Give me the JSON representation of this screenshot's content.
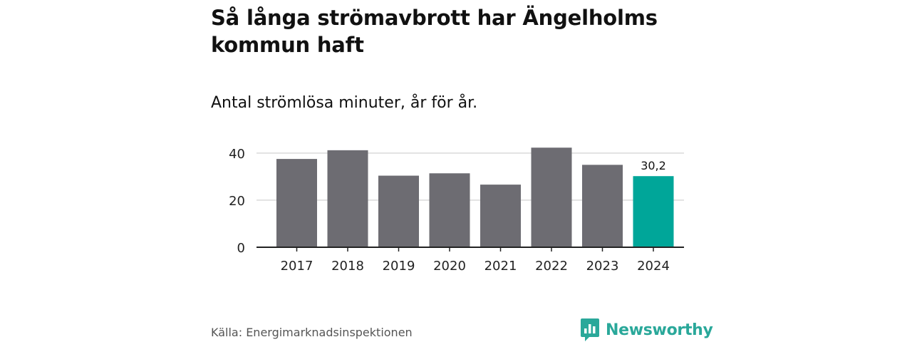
{
  "header": {
    "title": "Så långa strömavbrott har Ängelholms kommun haft",
    "subtitle": "Antal strömlösa minuter, år för år."
  },
  "footer": {
    "source": "Källa: Energimarknadsinspektionen",
    "brand": "Newsworthy"
  },
  "colors": {
    "bar": "#6d6c72",
    "highlight": "#00a699",
    "grid": "#d9d9d9",
    "axis": "#222222",
    "brand": "#2aa89a"
  },
  "chart_data": {
    "type": "bar",
    "title": "Så långa strömavbrott har Ängelholms kommun haft",
    "subtitle": "Antal strömlösa minuter, år för år.",
    "xlabel": "",
    "ylabel": "",
    "categories": [
      "2017",
      "2018",
      "2019",
      "2020",
      "2021",
      "2022",
      "2023",
      "2024"
    ],
    "values": [
      37.5,
      41.2,
      30.4,
      31.4,
      26.6,
      42.3,
      35.0,
      30.2
    ],
    "ylim": [
      0,
      46
    ],
    "yticks": [
      0,
      20,
      40
    ],
    "ytick_labels": [
      "0",
      "20",
      "40"
    ],
    "highlight_index": 7,
    "data_labels": [
      {
        "index": 7,
        "text": "30,2"
      }
    ],
    "grid": true,
    "legend": "none"
  }
}
